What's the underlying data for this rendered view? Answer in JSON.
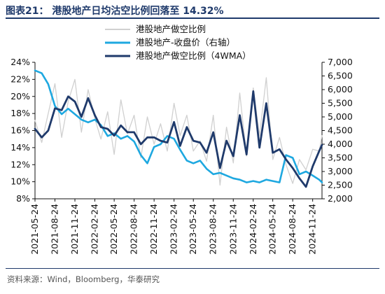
{
  "header": {
    "title": "图表21：  港股地产日均沽空比例回落至 14.32%"
  },
  "footer": {
    "source": "资料来源：Wind，Bloomberg，华泰研究"
  },
  "chart_data": {
    "type": "line",
    "title": "图表21：  港股地产日均沽空比例回落至 14.32%",
    "x": [
      "2021-05-24",
      "2021-06-24",
      "2021-07-24",
      "2021-08-24",
      "2021-09-24",
      "2021-10-24",
      "2021-11-24",
      "2021-12-24",
      "2022-01-24",
      "2022-02-24",
      "2022-03-24",
      "2022-04-24",
      "2022-05-24",
      "2022-06-24",
      "2022-07-24",
      "2022-08-24",
      "2022-09-24",
      "2022-10-24",
      "2022-11-24",
      "2022-12-24",
      "2023-01-24",
      "2023-02-24",
      "2023-03-24",
      "2023-04-24",
      "2023-05-24",
      "2023-06-24",
      "2023-07-24",
      "2023-08-24",
      "2023-09-24",
      "2023-10-24",
      "2023-11-24",
      "2023-12-24",
      "2024-01-24",
      "2024-02-24",
      "2024-03-24",
      "2024-04-24",
      "2024-05-24",
      "2024-06-24",
      "2024-07-24",
      "2024-08-24",
      "2024-09-24",
      "2024-10-24",
      "2024-11-24",
      "2024-12-24",
      "2025-01-06"
    ],
    "x_tick_labels": [
      "2021-05-24",
      "2021-08-24",
      "2021-11-24",
      "2022-02-24",
      "2022-05-24",
      "2022-08-24",
      "2022-11-24",
      "2023-02-24",
      "2023-05-24",
      "2023-08-24",
      "2023-11-24",
      "2024-02-24",
      "2024-05-24",
      "2024-08-24",
      "2024-11-24"
    ],
    "y_left": {
      "ylim": [
        8,
        24
      ],
      "ticks": [
        "8%",
        "10%",
        "12%",
        "14%",
        "16%",
        "18%",
        "20%",
        "22%",
        "24%"
      ]
    },
    "y_right": {
      "ylim": [
        2000,
        7000
      ],
      "ticks": [
        "2,000",
        "2,500",
        "3,000",
        "3,500",
        "4,000",
        "4,500",
        "5,000",
        "5,500",
        "6,000",
        "6,500",
        "7,000"
      ]
    },
    "legend_position": "top-center",
    "series": [
      {
        "name": "港股地产做空比例",
        "axis": "left",
        "color": "#d0d0d0",
        "values": [
          17.2,
          14.6,
          18.0,
          21.5,
          15.2,
          19.4,
          22.0,
          15.8,
          20.8,
          17.4,
          15.0,
          18.2,
          13.2,
          19.6,
          15.6,
          17.8,
          12.8,
          17.6,
          14.4,
          16.8,
          13.6,
          19.2,
          15.4,
          17.8,
          13.6,
          14.8,
          12.4,
          17.8,
          9.6,
          16.4,
          12.2,
          20.4,
          13.0,
          21.0,
          15.4,
          22.2,
          12.6,
          15.2,
          12.0,
          9.8,
          12.6,
          11.4,
          13.8,
          13.6,
          15.4
        ]
      },
      {
        "name": "港股地产-收盘价（右轴）",
        "axis": "right",
        "color": "#1ea8e0",
        "values": [
          6700,
          6600,
          6200,
          5400,
          5100,
          5300,
          5100,
          4900,
          4800,
          4900,
          4700,
          4300,
          4400,
          4200,
          4300,
          4100,
          3600,
          3300,
          3900,
          4000,
          4300,
          4200,
          3800,
          3400,
          3300,
          3400,
          3100,
          2900,
          2950,
          2850,
          2750,
          2700,
          2600,
          2650,
          2600,
          2700,
          2650,
          2600,
          3600,
          3500,
          2900,
          3000,
          2850,
          2700,
          2600
        ]
      },
      {
        "name": "港股地产做空比例（4WMA）",
        "axis": "left",
        "color": "#1f3a6b",
        "values": [
          16.2,
          15.2,
          16.0,
          18.6,
          18.4,
          20.0,
          19.4,
          17.6,
          19.8,
          17.8,
          16.4,
          16.2,
          15.4,
          16.6,
          15.8,
          15.8,
          14.4,
          15.2,
          15.2,
          14.8,
          14.6,
          17.0,
          14.2,
          16.4,
          14.8,
          14.6,
          13.4,
          15.8,
          11.6,
          14.8,
          13.0,
          17.8,
          13.2,
          20.6,
          14.0,
          19.2,
          13.4,
          13.8,
          12.6,
          11.6,
          10.4,
          9.4,
          11.8,
          13.6,
          14.32
        ]
      }
    ]
  }
}
